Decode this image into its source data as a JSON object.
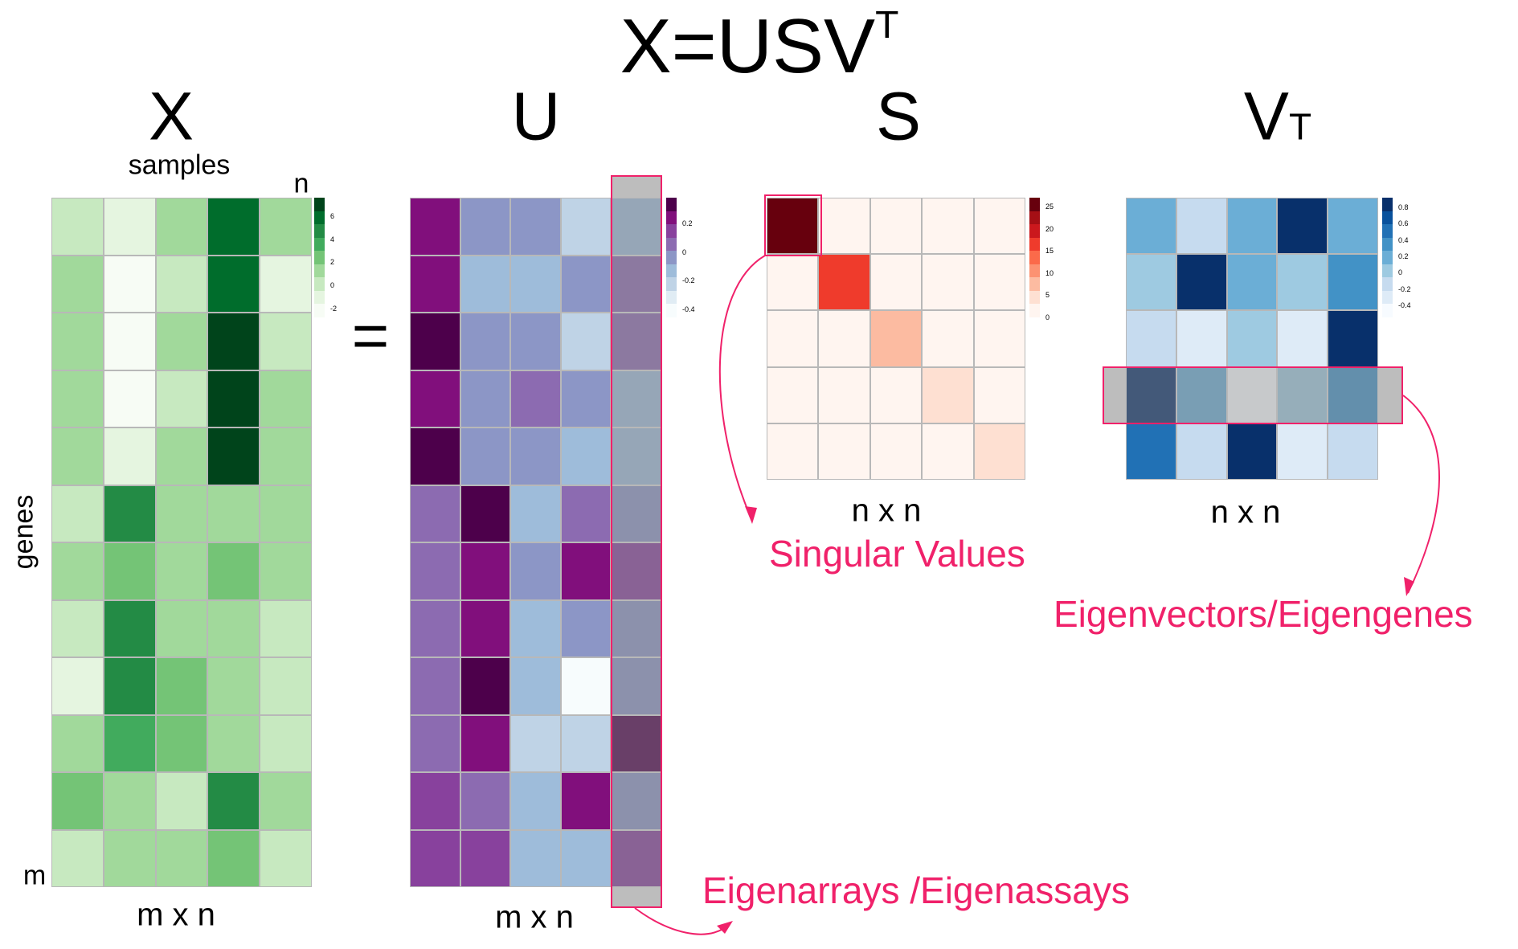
{
  "title": {
    "main": "X=USV",
    "superscript": "T"
  },
  "matrices": {
    "X": {
      "label": "X",
      "col_axis": "samples",
      "col_end": "n",
      "row_axis": "genes",
      "row_end": "m",
      "dims": "m x n",
      "palette": [
        "#f7fcf5",
        "#e5f5e0",
        "#c7e9c0",
        "#a1d99b",
        "#74c476",
        "#41ab5d",
        "#238b45",
        "#006d2c",
        "#00441b"
      ],
      "legend_ticks": [
        "6",
        "4",
        "2",
        "0",
        "-2"
      ],
      "levels": [
        [
          2,
          1,
          3,
          7,
          3
        ],
        [
          3,
          0,
          2,
          7,
          1
        ],
        [
          3,
          0,
          3,
          8,
          2
        ],
        [
          3,
          0,
          2,
          8,
          3
        ],
        [
          3,
          1,
          3,
          8,
          3
        ],
        [
          2,
          6,
          3,
          3,
          3
        ],
        [
          3,
          4,
          3,
          4,
          3
        ],
        [
          2,
          6,
          3,
          3,
          2
        ],
        [
          1,
          6,
          4,
          3,
          2
        ],
        [
          3,
          5,
          4,
          3,
          2
        ],
        [
          4,
          3,
          2,
          6,
          3
        ],
        [
          2,
          3,
          3,
          4,
          2
        ]
      ]
    },
    "U": {
      "label": "U",
      "dims": "m x n",
      "palette": [
        "#f7fcfd",
        "#e0ecf4",
        "#bfd3e6",
        "#9ebcda",
        "#8c96c6",
        "#8c6bb1",
        "#88419d",
        "#810f7c",
        "#4d004b"
      ],
      "legend_ticks": [
        "0.2",
        "0",
        "-0.2",
        "-0.4"
      ],
      "levels": [
        [
          7,
          4,
          4,
          2,
          3
        ],
        [
          7,
          3,
          3,
          4,
          5
        ],
        [
          8,
          4,
          4,
          2,
          5
        ],
        [
          7,
          4,
          5,
          4,
          3
        ],
        [
          8,
          4,
          4,
          3,
          3
        ],
        [
          5,
          8,
          3,
          5,
          4
        ],
        [
          5,
          7,
          4,
          7,
          6
        ],
        [
          5,
          7,
          3,
          4,
          4
        ],
        [
          5,
          8,
          3,
          0,
          4
        ],
        [
          5,
          7,
          2,
          2,
          8
        ],
        [
          6,
          5,
          3,
          7,
          4
        ],
        [
          6,
          6,
          3,
          3,
          6
        ]
      ]
    },
    "S": {
      "label": "S",
      "dims": "n x n",
      "palette": [
        "#fff5f0",
        "#fee0d2",
        "#fcbba1",
        "#fc9272",
        "#fb6a4a",
        "#ef3b2c",
        "#cb181d",
        "#a50f15",
        "#67000d"
      ],
      "legend_ticks": [
        "25",
        "20",
        "15",
        "10",
        "5",
        "0"
      ],
      "levels": [
        [
          8,
          0,
          0,
          0,
          0
        ],
        [
          0,
          5,
          0,
          0,
          0
        ],
        [
          0,
          0,
          2,
          0,
          0
        ],
        [
          0,
          0,
          0,
          1,
          0
        ],
        [
          0,
          0,
          0,
          0,
          1
        ]
      ]
    },
    "VT": {
      "label": "V",
      "label_sub": "T",
      "dims": "n x n",
      "palette": [
        "#f7fbff",
        "#deebf7",
        "#c6dbef",
        "#9ecae1",
        "#6baed6",
        "#4292c6",
        "#2171b5",
        "#08519c",
        "#08306b"
      ],
      "legend_ticks": [
        "0.8",
        "0.6",
        "0.4",
        "0.2",
        "0",
        "-0.2",
        "-0.4"
      ],
      "levels": [
        [
          4,
          2,
          4,
          8,
          4
        ],
        [
          3,
          8,
          4,
          3,
          5
        ],
        [
          2,
          1,
          3,
          1,
          8
        ],
        [
          8,
          4,
          0,
          3,
          5
        ],
        [
          6,
          2,
          8,
          1,
          2
        ]
      ]
    }
  },
  "equals": "=",
  "annotations": {
    "singular_values": "Singular Values",
    "eigengenes": "Eigenvectors/Eigengenes",
    "eigenarrays": "Eigenarrays /Eigenassays"
  },
  "highlight_color": "#f0216a"
}
